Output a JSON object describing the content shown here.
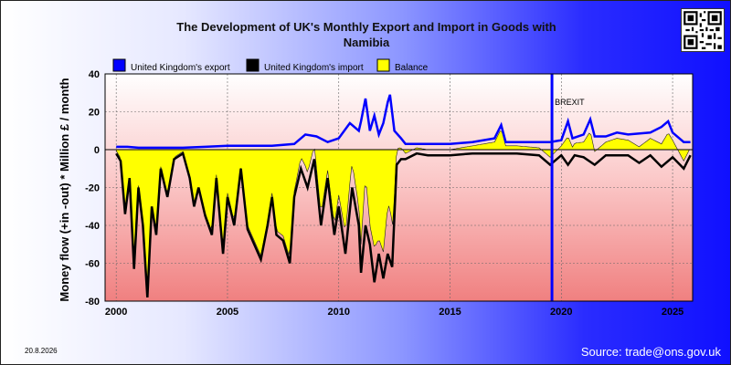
{
  "chart_data": {
    "type": "area",
    "title": "The Development of UK's Monthly Export and Import in Goods with Namibia",
    "title_lines": [
      "The Development of UK's Monthly Export and Import in Goods with",
      "Namibia"
    ],
    "ylabel": "Money flow (+in -out) * Million £ / month",
    "xlabel": "",
    "ylim": [
      -80,
      40
    ],
    "xlim": [
      1999.5,
      2025.9
    ],
    "y_ticks": [
      40,
      20,
      0,
      -20,
      -40,
      -60,
      -80
    ],
    "x_ticks": [
      2000,
      2005,
      2010,
      2015,
      2020,
      2025
    ],
    "grid": true,
    "legend_position": "top-left",
    "annotation": {
      "label": "BREXIT",
      "x": 2019.58
    },
    "series": [
      {
        "name": "United Kingdom's export",
        "color": "#0000ff",
        "values": [
          [
            2000.0,
            1.5
          ],
          [
            2000.5,
            1.5
          ],
          [
            2001.0,
            1.0
          ],
          [
            2002.0,
            1.0
          ],
          [
            2003.0,
            1.0
          ],
          [
            2004.0,
            1.5
          ],
          [
            2005.0,
            2.0
          ],
          [
            2006.0,
            2.0
          ],
          [
            2007.0,
            2.0
          ],
          [
            2008.0,
            3.0
          ],
          [
            2008.5,
            8.0
          ],
          [
            2009.0,
            7.0
          ],
          [
            2009.5,
            4.0
          ],
          [
            2010.0,
            6.0
          ],
          [
            2010.5,
            14.0
          ],
          [
            2010.9,
            10.0
          ],
          [
            2011.0,
            15.0
          ],
          [
            2011.2,
            27.0
          ],
          [
            2011.4,
            10.0
          ],
          [
            2011.6,
            18.0
          ],
          [
            2011.8,
            8.0
          ],
          [
            2012.0,
            14.0
          ],
          [
            2012.2,
            25.0
          ],
          [
            2012.3,
            29.0
          ],
          [
            2012.5,
            10.0
          ],
          [
            2012.8,
            6.0
          ],
          [
            2013.0,
            3.0
          ],
          [
            2014.0,
            3.0
          ],
          [
            2015.0,
            3.0
          ],
          [
            2016.0,
            4.0
          ],
          [
            2017.0,
            6.0
          ],
          [
            2017.3,
            13.0
          ],
          [
            2017.5,
            4.0
          ],
          [
            2018.0,
            4.0
          ],
          [
            2019.0,
            4.0
          ],
          [
            2019.5,
            4.0
          ],
          [
            2020.0,
            5.0
          ],
          [
            2020.3,
            15.0
          ],
          [
            2020.5,
            6.0
          ],
          [
            2021.0,
            8.0
          ],
          [
            2021.3,
            16.0
          ],
          [
            2021.5,
            7.0
          ],
          [
            2022.0,
            7.0
          ],
          [
            2022.5,
            9.0
          ],
          [
            2023.0,
            8.0
          ],
          [
            2024.0,
            9.0
          ],
          [
            2024.5,
            12.0
          ],
          [
            2024.8,
            15.0
          ],
          [
            2025.0,
            9.0
          ],
          [
            2025.5,
            4.0
          ],
          [
            2025.8,
            4.0
          ]
        ]
      },
      {
        "name": "United Kingdom's import",
        "color": "#000000",
        "values": [
          [
            2000.0,
            -2.0
          ],
          [
            2000.2,
            -6.0
          ],
          [
            2000.4,
            -34.0
          ],
          [
            2000.6,
            -15.0
          ],
          [
            2000.8,
            -63.0
          ],
          [
            2001.0,
            -20.0
          ],
          [
            2001.2,
            -40.0
          ],
          [
            2001.4,
            -78.0
          ],
          [
            2001.6,
            -30.0
          ],
          [
            2001.8,
            -45.0
          ],
          [
            2002.0,
            -10.0
          ],
          [
            2002.3,
            -25.0
          ],
          [
            2002.6,
            -5.0
          ],
          [
            2003.0,
            -2.0
          ],
          [
            2003.3,
            -15.0
          ],
          [
            2003.5,
            -30.0
          ],
          [
            2003.7,
            -20.0
          ],
          [
            2004.0,
            -35.0
          ],
          [
            2004.3,
            -45.0
          ],
          [
            2004.5,
            -15.0
          ],
          [
            2004.8,
            -55.0
          ],
          [
            2005.0,
            -25.0
          ],
          [
            2005.3,
            -40.0
          ],
          [
            2005.6,
            -10.0
          ],
          [
            2005.9,
            -42.0
          ],
          [
            2006.2,
            -50.0
          ],
          [
            2006.5,
            -58.0
          ],
          [
            2006.8,
            -40.0
          ],
          [
            2007.0,
            -25.0
          ],
          [
            2007.2,
            -45.0
          ],
          [
            2007.5,
            -48.0
          ],
          [
            2007.8,
            -60.0
          ],
          [
            2008.0,
            -25.0
          ],
          [
            2008.3,
            -10.0
          ],
          [
            2008.6,
            -20.0
          ],
          [
            2008.9,
            -5.0
          ],
          [
            2009.2,
            -40.0
          ],
          [
            2009.5,
            -15.0
          ],
          [
            2009.8,
            -45.0
          ],
          [
            2010.0,
            -30.0
          ],
          [
            2010.3,
            -55.0
          ],
          [
            2010.6,
            -20.0
          ],
          [
            2010.9,
            -40.0
          ],
          [
            2011.0,
            -65.0
          ],
          [
            2011.2,
            -40.0
          ],
          [
            2011.4,
            -50.0
          ],
          [
            2011.6,
            -70.0
          ],
          [
            2011.8,
            -55.0
          ],
          [
            2012.0,
            -68.0
          ],
          [
            2012.2,
            -55.0
          ],
          [
            2012.4,
            -62.0
          ],
          [
            2012.6,
            -8.0
          ],
          [
            2012.8,
            -5.0
          ],
          [
            2013.0,
            -5.0
          ],
          [
            2013.5,
            -2.0
          ],
          [
            2014.0,
            -3.0
          ],
          [
            2015.0,
            -3.0
          ],
          [
            2016.0,
            -2.0
          ],
          [
            2017.0,
            -2.0
          ],
          [
            2018.0,
            -2.0
          ],
          [
            2019.0,
            -3.0
          ],
          [
            2019.5,
            -8.0
          ],
          [
            2020.0,
            -3.0
          ],
          [
            2020.3,
            -8.0
          ],
          [
            2020.6,
            -3.0
          ],
          [
            2021.0,
            -4.0
          ],
          [
            2021.5,
            -8.0
          ],
          [
            2022.0,
            -3.0
          ],
          [
            2023.0,
            -3.0
          ],
          [
            2023.5,
            -7.0
          ],
          [
            2024.0,
            -3.0
          ],
          [
            2024.5,
            -9.0
          ],
          [
            2025.0,
            -4.0
          ],
          [
            2025.5,
            -10.0
          ],
          [
            2025.8,
            -3.0
          ]
        ]
      },
      {
        "name": "Balance",
        "color": "#ffff00"
      }
    ]
  },
  "date_stamp": "20.8.2026",
  "source": "Source: trade@ons.gov.uk"
}
